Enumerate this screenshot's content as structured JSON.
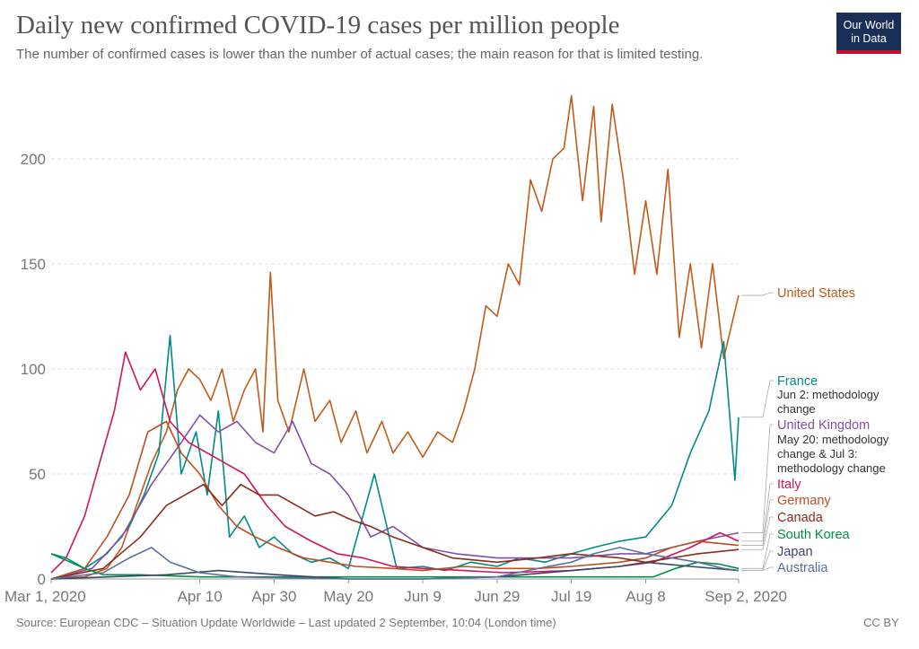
{
  "header": {
    "title": "Daily new confirmed COVID-19 cases per million people",
    "subtitle": "The number of confirmed cases is lower than the number of actual cases; the main reason for that is limited testing.",
    "logo_line1": "Our World",
    "logo_line2": "in Data"
  },
  "footer": {
    "source": "Source: European CDC – Situation Update Worldwide – Last updated 2 September, 10:04 (London time)",
    "license": "CC BY"
  },
  "chart_data": {
    "type": "line",
    "title": "Daily new confirmed COVID-19 cases per million people",
    "subtitle": "The number of confirmed cases is lower than the number of actual cases; the main reason for that is limited testing.",
    "xlabel": "",
    "ylabel": "",
    "x_range": [
      "2020-03-01",
      "2020-09-02"
    ],
    "x_ticks": [
      "Mar 1, 2020",
      "Apr 10",
      "Apr 30",
      "May 20",
      "Jun 9",
      "Jun 29",
      "Jul 19",
      "Aug 8",
      "Sep 2, 2020"
    ],
    "y_ticks": [
      "0",
      "50",
      "100",
      "150",
      "200"
    ],
    "ylim": [
      0,
      235
    ],
    "grid": true,
    "legend": "right (direct labels)",
    "series": [
      {
        "name": "United States",
        "color": "#c15b19",
        "points": [
          [
            "2020-03-01",
            0
          ],
          [
            "2020-03-10",
            1
          ],
          [
            "2020-03-16",
            5
          ],
          [
            "2020-03-20",
            15
          ],
          [
            "2020-03-24",
            35
          ],
          [
            "2020-03-28",
            55
          ],
          [
            "2020-04-01",
            70
          ],
          [
            "2020-04-04",
            90
          ],
          [
            "2020-04-07",
            100
          ],
          [
            "2020-04-10",
            95
          ],
          [
            "2020-04-13",
            85
          ],
          [
            "2020-04-16",
            100
          ],
          [
            "2020-04-19",
            75
          ],
          [
            "2020-04-22",
            90
          ],
          [
            "2020-04-25",
            100
          ],
          [
            "2020-04-27",
            70
          ],
          [
            "2020-04-29",
            146
          ],
          [
            "2020-05-01",
            85
          ],
          [
            "2020-05-04",
            70
          ],
          [
            "2020-05-08",
            100
          ],
          [
            "2020-05-11",
            75
          ],
          [
            "2020-05-15",
            85
          ],
          [
            "2020-05-18",
            65
          ],
          [
            "2020-05-22",
            80
          ],
          [
            "2020-05-25",
            60
          ],
          [
            "2020-05-29",
            75
          ],
          [
            "2020-06-01",
            60
          ],
          [
            "2020-06-05",
            70
          ],
          [
            "2020-06-09",
            58
          ],
          [
            "2020-06-13",
            70
          ],
          [
            "2020-06-17",
            65
          ],
          [
            "2020-06-20",
            80
          ],
          [
            "2020-06-23",
            100
          ],
          [
            "2020-06-26",
            130
          ],
          [
            "2020-06-29",
            125
          ],
          [
            "2020-07-02",
            150
          ],
          [
            "2020-07-05",
            140
          ],
          [
            "2020-07-08",
            190
          ],
          [
            "2020-07-11",
            175
          ],
          [
            "2020-07-14",
            200
          ],
          [
            "2020-07-17",
            205
          ],
          [
            "2020-07-19",
            230
          ],
          [
            "2020-07-22",
            180
          ],
          [
            "2020-07-25",
            225
          ],
          [
            "2020-07-27",
            170
          ],
          [
            "2020-07-30",
            226
          ],
          [
            "2020-08-02",
            190
          ],
          [
            "2020-08-05",
            145
          ],
          [
            "2020-08-08",
            180
          ],
          [
            "2020-08-11",
            145
          ],
          [
            "2020-08-14",
            195
          ],
          [
            "2020-08-17",
            115
          ],
          [
            "2020-08-20",
            150
          ],
          [
            "2020-08-23",
            110
          ],
          [
            "2020-08-26",
            150
          ],
          [
            "2020-08-29",
            105
          ],
          [
            "2020-09-02",
            135
          ]
        ]
      },
      {
        "name": "France",
        "color": "#008b87",
        "points": [
          [
            "2020-03-01",
            12
          ],
          [
            "2020-03-10",
            5
          ],
          [
            "2020-03-16",
            12
          ],
          [
            "2020-03-22",
            25
          ],
          [
            "2020-03-26",
            40
          ],
          [
            "2020-03-30",
            60
          ],
          [
            "2020-04-02",
            116
          ],
          [
            "2020-04-05",
            50
          ],
          [
            "2020-04-09",
            70
          ],
          [
            "2020-04-12",
            40
          ],
          [
            "2020-04-15",
            80
          ],
          [
            "2020-04-18",
            20
          ],
          [
            "2020-04-22",
            30
          ],
          [
            "2020-04-26",
            15
          ],
          [
            "2020-04-30",
            20
          ],
          [
            "2020-05-05",
            12
          ],
          [
            "2020-05-10",
            8
          ],
          [
            "2020-05-15",
            10
          ],
          [
            "2020-05-20",
            5
          ],
          [
            "2020-05-27",
            50
          ],
          [
            "2020-06-02",
            5
          ],
          [
            "2020-06-09",
            6
          ],
          [
            "2020-06-15",
            4
          ],
          [
            "2020-06-22",
            8
          ],
          [
            "2020-06-29",
            6
          ],
          [
            "2020-07-05",
            10
          ],
          [
            "2020-07-12",
            8
          ],
          [
            "2020-07-19",
            12
          ],
          [
            "2020-07-25",
            15
          ],
          [
            "2020-08-01",
            18
          ],
          [
            "2020-08-08",
            20
          ],
          [
            "2020-08-15",
            35
          ],
          [
            "2020-08-20",
            60
          ],
          [
            "2020-08-25",
            80
          ],
          [
            "2020-08-29",
            113
          ],
          [
            "2020-09-01",
            47
          ],
          [
            "2020-09-02",
            77
          ]
        ]
      },
      {
        "name": "United Kingdom",
        "color": "#8250a8",
        "points": [
          [
            "2020-03-01",
            0
          ],
          [
            "2020-03-12",
            5
          ],
          [
            "2020-03-20",
            20
          ],
          [
            "2020-03-28",
            45
          ],
          [
            "2020-04-05",
            65
          ],
          [
            "2020-04-10",
            78
          ],
          [
            "2020-04-15",
            70
          ],
          [
            "2020-04-20",
            75
          ],
          [
            "2020-04-25",
            65
          ],
          [
            "2020-04-30",
            60
          ],
          [
            "2020-05-05",
            75
          ],
          [
            "2020-05-10",
            55
          ],
          [
            "2020-05-15",
            50
          ],
          [
            "2020-05-20",
            40
          ],
          [
            "2020-05-26",
            20
          ],
          [
            "2020-06-01",
            25
          ],
          [
            "2020-06-09",
            15
          ],
          [
            "2020-06-18",
            12
          ],
          [
            "2020-06-29",
            10
          ],
          [
            "2020-07-10",
            10
          ],
          [
            "2020-07-19",
            10
          ],
          [
            "2020-08-01",
            12
          ],
          [
            "2020-08-08",
            12
          ],
          [
            "2020-08-15",
            15
          ],
          [
            "2020-08-22",
            18
          ],
          [
            "2020-09-02",
            22
          ]
        ]
      },
      {
        "name": "Italy",
        "color": "#d1145a",
        "points": [
          [
            "2020-03-01",
            3
          ],
          [
            "2020-03-05",
            10
          ],
          [
            "2020-03-10",
            30
          ],
          [
            "2020-03-14",
            55
          ],
          [
            "2020-03-18",
            80
          ],
          [
            "2020-03-21",
            108
          ],
          [
            "2020-03-25",
            90
          ],
          [
            "2020-03-29",
            100
          ],
          [
            "2020-04-02",
            75
          ],
          [
            "2020-04-07",
            65
          ],
          [
            "2020-04-12",
            60
          ],
          [
            "2020-04-17",
            55
          ],
          [
            "2020-04-22",
            50
          ],
          [
            "2020-04-28",
            35
          ],
          [
            "2020-05-03",
            25
          ],
          [
            "2020-05-10",
            18
          ],
          [
            "2020-05-17",
            12
          ],
          [
            "2020-05-24",
            10
          ],
          [
            "2020-06-01",
            6
          ],
          [
            "2020-06-09",
            5
          ],
          [
            "2020-06-20",
            4
          ],
          [
            "2020-07-01",
            3
          ],
          [
            "2020-07-19",
            4
          ],
          [
            "2020-08-01",
            6
          ],
          [
            "2020-08-10",
            8
          ],
          [
            "2020-08-20",
            15
          ],
          [
            "2020-08-28",
            22
          ],
          [
            "2020-09-02",
            18
          ]
        ]
      },
      {
        "name": "Germany",
        "color": "#bc4e23",
        "points": [
          [
            "2020-03-01",
            0
          ],
          [
            "2020-03-10",
            5
          ],
          [
            "2020-03-16",
            20
          ],
          [
            "2020-03-22",
            40
          ],
          [
            "2020-03-27",
            70
          ],
          [
            "2020-04-01",
            75
          ],
          [
            "2020-04-05",
            60
          ],
          [
            "2020-04-10",
            50
          ],
          [
            "2020-04-15",
            35
          ],
          [
            "2020-04-20",
            25
          ],
          [
            "2020-04-25",
            20
          ],
          [
            "2020-05-01",
            15
          ],
          [
            "2020-05-08",
            10
          ],
          [
            "2020-05-15",
            8
          ],
          [
            "2020-05-22",
            6
          ],
          [
            "2020-06-01",
            5
          ],
          [
            "2020-06-09",
            4
          ],
          [
            "2020-06-20",
            6
          ],
          [
            "2020-06-29",
            5
          ],
          [
            "2020-07-10",
            5
          ],
          [
            "2020-07-19",
            6
          ],
          [
            "2020-08-01",
            8
          ],
          [
            "2020-08-08",
            10
          ],
          [
            "2020-08-15",
            15
          ],
          [
            "2020-08-22",
            18
          ],
          [
            "2020-09-02",
            16
          ]
        ]
      },
      {
        "name": "Canada",
        "color": "#8b2c1a",
        "points": [
          [
            "2020-03-01",
            0
          ],
          [
            "2020-03-15",
            5
          ],
          [
            "2020-03-25",
            20
          ],
          [
            "2020-04-01",
            35
          ],
          [
            "2020-04-06",
            40
          ],
          [
            "2020-04-11",
            45
          ],
          [
            "2020-04-16",
            35
          ],
          [
            "2020-04-21",
            45
          ],
          [
            "2020-04-26",
            40
          ],
          [
            "2020-05-01",
            40
          ],
          [
            "2020-05-06",
            35
          ],
          [
            "2020-05-11",
            30
          ],
          [
            "2020-05-16",
            32
          ],
          [
            "2020-05-21",
            28
          ],
          [
            "2020-05-26",
            25
          ],
          [
            "2020-06-01",
            20
          ],
          [
            "2020-06-09",
            15
          ],
          [
            "2020-06-17",
            10
          ],
          [
            "2020-06-29",
            8
          ],
          [
            "2020-07-10",
            10
          ],
          [
            "2020-07-19",
            12
          ],
          [
            "2020-08-01",
            10
          ],
          [
            "2020-08-08",
            8
          ],
          [
            "2020-08-15",
            10
          ],
          [
            "2020-08-22",
            12
          ],
          [
            "2020-09-02",
            14
          ]
        ]
      },
      {
        "name": "South Korea",
        "color": "#00913f",
        "points": [
          [
            "2020-03-01",
            12
          ],
          [
            "2020-03-05",
            10
          ],
          [
            "2020-03-10",
            5
          ],
          [
            "2020-03-15",
            2
          ],
          [
            "2020-03-25",
            2
          ],
          [
            "2020-04-10",
            1
          ],
          [
            "2020-05-10",
            1
          ],
          [
            "2020-06-09",
            1
          ],
          [
            "2020-07-19",
            1
          ],
          [
            "2020-08-01",
            1
          ],
          [
            "2020-08-10",
            1
          ],
          [
            "2020-08-16",
            5
          ],
          [
            "2020-08-22",
            8
          ],
          [
            "2020-08-28",
            7
          ],
          [
            "2020-09-02",
            5
          ]
        ]
      },
      {
        "name": "Japan",
        "color": "#3b4767",
        "points": [
          [
            "2020-03-01",
            0
          ],
          [
            "2020-04-01",
            2
          ],
          [
            "2020-04-15",
            4
          ],
          [
            "2020-05-01",
            2
          ],
          [
            "2020-05-20",
            0
          ],
          [
            "2020-06-09",
            0
          ],
          [
            "2020-06-29",
            1
          ],
          [
            "2020-07-19",
            4
          ],
          [
            "2020-08-01",
            6
          ],
          [
            "2020-08-08",
            8
          ],
          [
            "2020-08-20",
            6
          ],
          [
            "2020-09-02",
            4
          ]
        ]
      },
      {
        "name": "Australia",
        "color": "#5b6fa5",
        "points": [
          [
            "2020-03-01",
            0
          ],
          [
            "2020-03-15",
            3
          ],
          [
            "2020-03-22",
            10
          ],
          [
            "2020-03-28",
            15
          ],
          [
            "2020-04-02",
            8
          ],
          [
            "2020-04-10",
            3
          ],
          [
            "2020-04-20",
            1
          ],
          [
            "2020-05-20",
            0
          ],
          [
            "2020-06-09",
            0
          ],
          [
            "2020-06-29",
            1
          ],
          [
            "2020-07-10",
            5
          ],
          [
            "2020-07-19",
            8
          ],
          [
            "2020-07-25",
            12
          ],
          [
            "2020-08-01",
            15
          ],
          [
            "2020-08-08",
            12
          ],
          [
            "2020-08-15",
            10
          ],
          [
            "2020-08-22",
            8
          ],
          [
            "2020-08-29",
            5
          ],
          [
            "2020-09-02",
            4
          ]
        ]
      }
    ],
    "annotations": [
      {
        "series": "France",
        "text": [
          "Jun 2: methodology",
          "change"
        ]
      },
      {
        "series": "United Kingdom",
        "text": [
          "May 20: methodology",
          "change & Jul 3:",
          "methodology change"
        ]
      }
    ]
  }
}
